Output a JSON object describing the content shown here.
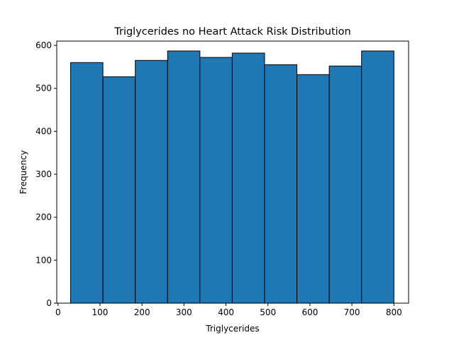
{
  "chart_data": {
    "type": "bar",
    "title": "Triglycerides no Heart Attack Risk Distribution",
    "xlabel": "Triglycerides",
    "ylabel": "Frequency",
    "xlim": [
      -3,
      835
    ],
    "ylim": [
      0,
      610
    ],
    "bin_edges": [
      30,
      107,
      184,
      261,
      338,
      415,
      492,
      569,
      646,
      723,
      800
    ],
    "values": [
      560,
      527,
      565,
      587,
      572,
      582,
      555,
      532,
      552,
      587
    ],
    "xticks": [
      0,
      100,
      200,
      300,
      400,
      500,
      600,
      700,
      800
    ],
    "yticks": [
      0,
      100,
      200,
      300,
      400,
      500,
      600
    ],
    "bar_color": "#1f77b4",
    "edge_color": "#000000",
    "grid": false
  }
}
